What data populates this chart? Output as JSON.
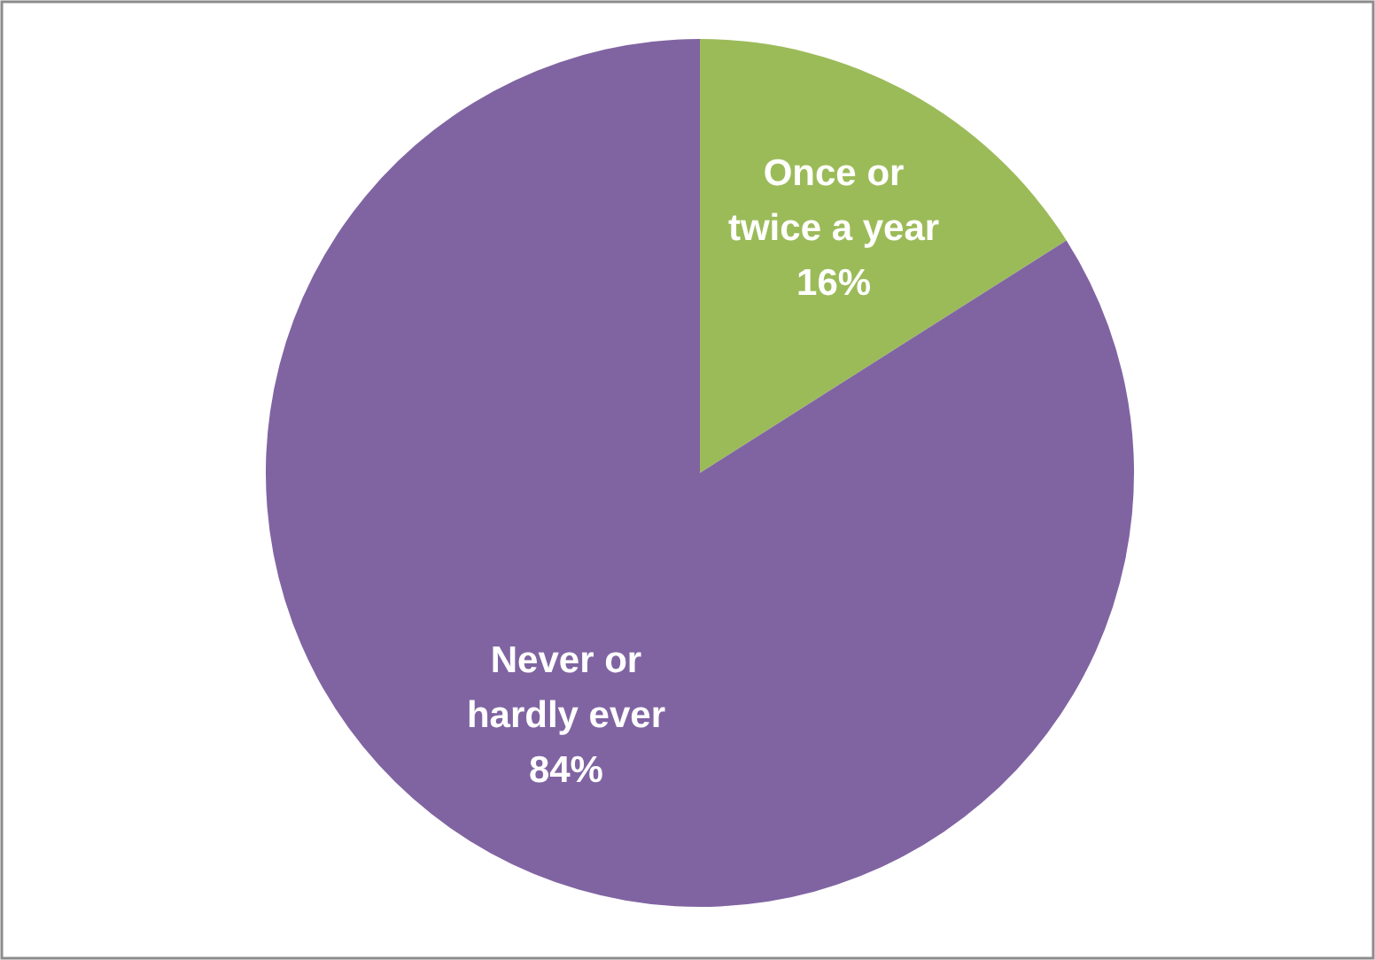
{
  "chart_data": {
    "type": "pie",
    "categories": [
      "Once or twice a year",
      "Never or hardly ever"
    ],
    "values": [
      16,
      84
    ],
    "colors": [
      "#9bbb59",
      "#8064a2"
    ],
    "value_labels": [
      "16%",
      "84%"
    ]
  }
}
